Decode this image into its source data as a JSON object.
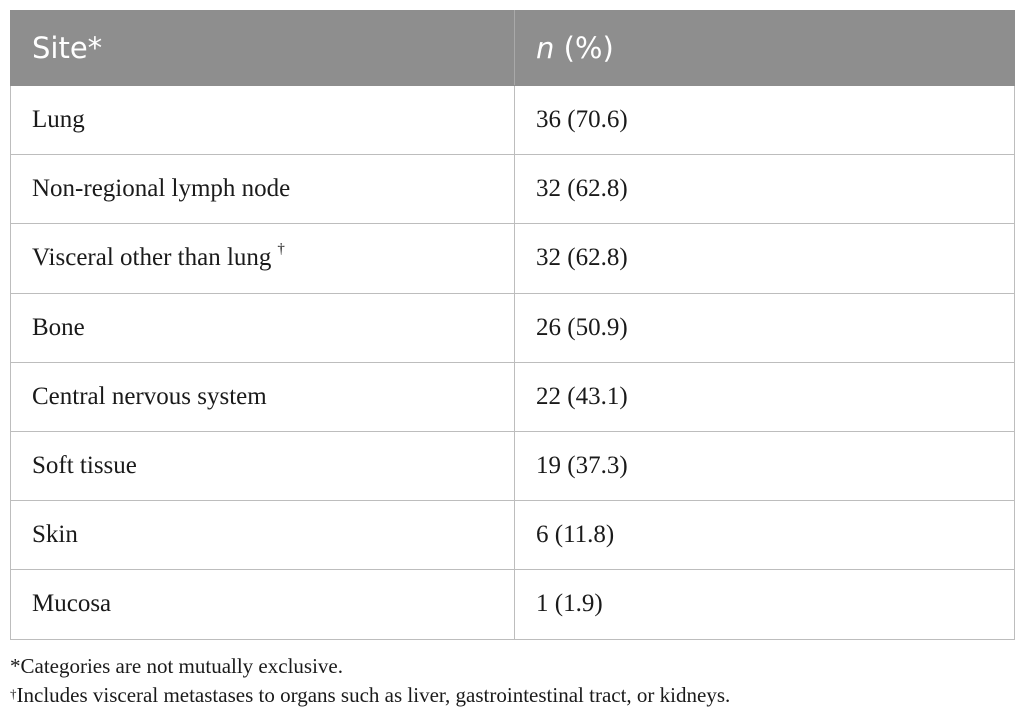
{
  "table": {
    "headers": {
      "site": "Site*",
      "n_italic": "n",
      "n_rest": " (%)"
    },
    "rows": [
      {
        "site": "Lung",
        "mark": "",
        "value": "36 (70.6)"
      },
      {
        "site": "Non-regional lymph node",
        "mark": "",
        "value": "32 (62.8)"
      },
      {
        "site": "Visceral other than lung",
        "mark": "†",
        "value": "32 (62.8)"
      },
      {
        "site": "Bone",
        "mark": "",
        "value": "26 (50.9)"
      },
      {
        "site": "Central nervous system",
        "mark": "",
        "value": "22 (43.1)"
      },
      {
        "site": "Soft tissue",
        "mark": "",
        "value": "19 (37.3)"
      },
      {
        "site": "Skin",
        "mark": "",
        "value": "6 (11.8)"
      },
      {
        "site": "Mucosa",
        "mark": "",
        "value": "1 (1.9)"
      }
    ]
  },
  "footnotes": {
    "note1": "*Categories are not mutually exclusive.",
    "note2_mark": "†",
    "note2_text": "Includes visceral metastases to organs such as liver, gastrointestinal tract, or kidneys."
  }
}
